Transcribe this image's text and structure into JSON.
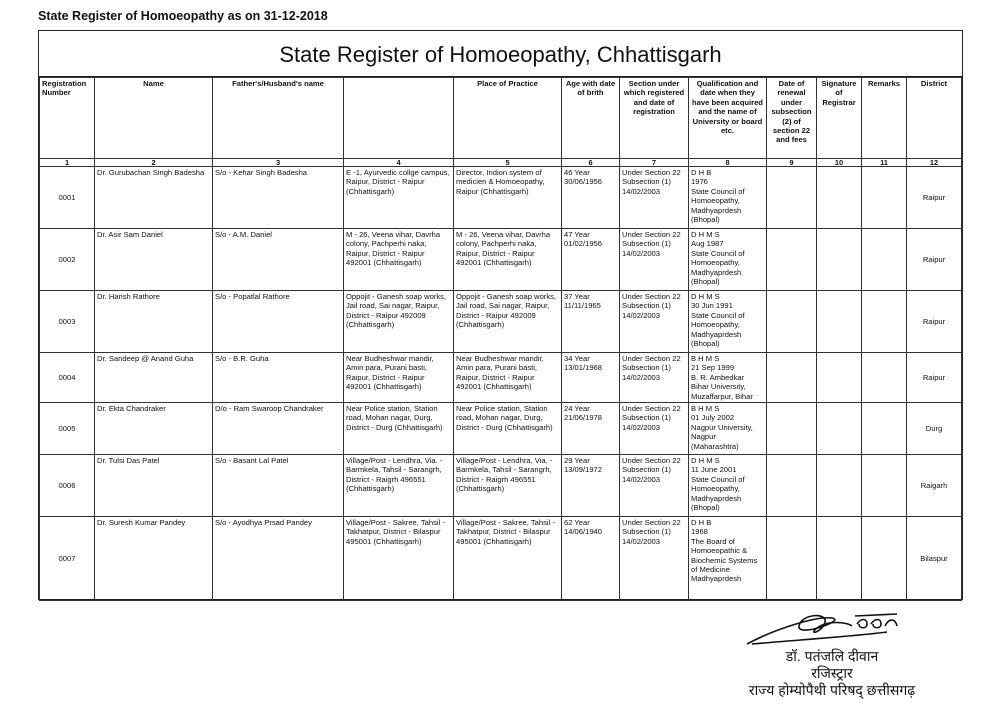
{
  "doc_heading": "State Register of Homoeopathy as on 31-12-2018",
  "title": "State Register of Homoeopathy, Chhattisgarh",
  "columns": [
    {
      "header": "Registration Number",
      "num": "1"
    },
    {
      "header": "Name",
      "num": "2"
    },
    {
      "header": "Father's/Husband's  name",
      "num": "3"
    },
    {
      "header": "",
      "num": "4"
    },
    {
      "header": "Place of Practice",
      "num": "5"
    },
    {
      "header": "Age with date of  brith",
      "num": "6"
    },
    {
      "header": "Section under which registered and date of registration",
      "num": "7"
    },
    {
      "header": "Qualification and date when they have been acquired and the name of University or board etc.",
      "num": "8"
    },
    {
      "header": "Date of renewal under subsection (2) of section 22 and fees",
      "num": "9"
    },
    {
      "header": "Signature of Registrar",
      "num": "10"
    },
    {
      "header": "Remarks",
      "num": "11"
    },
    {
      "header": "District",
      "num": "12"
    }
  ],
  "rows": [
    {
      "reg": "0001",
      "name": "Dr. Gurubachan Singh Badesha",
      "father": "S/o - Kehar Singh Badesha",
      "address": "E -1, Ayurvedic collge campus, Raipur, District - Raipur (Chhattisgarh)",
      "practice": "Director, Indion system of medicien & Homoeopathy, Raipur (Chhattisgarh)",
      "age": "46  Year\n30/06/1956",
      "section": "Under Section 22\nSubsection (1)\n14/02/2003",
      "qual": "D H B\n1976\nState Council of\nHomoeopathy,\nMadhyaprdesh\n(Bhopal)",
      "renewal": "",
      "signature": "",
      "remarks": "",
      "district": "Raipur"
    },
    {
      "reg": "0002",
      "name": "Dr. Asir Sam Daniel",
      "father": "S/o - A.M. Daniel",
      "address": "M - 26, Veena vihar, Davrha colony, Pachperhi naka, Raipur, District - Raipur 492001 (Chhattisgarh)",
      "practice": "M - 26, Veena vihar, Davrha colony, Pachperhi naka, Raipur, District - Raipur 492001 (Chhattisgarh)",
      "age": "47  Year\n01/02/1956",
      "section": "Under Section 22\nSubsection (1)\n14/02/2003",
      "qual": "D H M S\nAug 1987\nState Council of\nHomoeopathy,\nMadhyaprdesh\n(Bhopal)",
      "renewal": "",
      "signature": "",
      "remarks": "",
      "district": "Raipur"
    },
    {
      "reg": "0003",
      "name": "Dr. Harish Rathore",
      "father": "S/o - Popatlal Rathore",
      "address": "Oppojit - Ganesh soap works, Jail road, Sai nagar, Raipur,  District - Raipur 492009 (Chhattisgarh)",
      "practice": "Oppojit - Ganesh soap works, Jail road, Sai nagar, Raipur,  District - Raipur 492009 (Chhattisgarh)",
      "age": "37 Year\n11/11/1965",
      "section": "Under Section 22\nSubsection (1)\n14/02/2003",
      "qual": "D H M S\n30 Jun 1991\nState Council of\nHomoeopathy,\nMadhyaprdesh\n(Bhopal)",
      "renewal": "",
      "signature": "",
      "remarks": "",
      "district": "Raipur"
    },
    {
      "reg": "0004",
      "name": "Dr. Sandeep @ Anand Guha",
      "father": "S/o - B.R. Guha",
      "address": "Near Budheshwar mandir, Amin para, Purani basti, Raipur, District - Raipur 492001 (Chhattisgarh)",
      "practice": "Near Budheshwar mandir, Amin para, Purani basti, Raipur, District - Raipur 492001 (Chhattisgarh)",
      "age": "34  Year\n13/01/1968",
      "section": "Under Section 22\nSubsection (1)\n14/02/2003",
      "qual": "B H M S\n21 Sep 1999\nB. R. Ambedkar\nBihar University,\nMuzaffarpur, Bihar",
      "renewal": "",
      "signature": "",
      "remarks": "",
      "district": "Raipur"
    },
    {
      "reg": "0005",
      "name": "Dr. Ekta Chandraker",
      "father": "D/o - Ram Swaroop Chandraker",
      "address": "Near Police station, Station road, Mohan nagar, Durg, District - Durg (Chhattisgarh)",
      "practice": "Near Police station, Station road, Mohan nagar, Durg, District - Durg (Chhattisgarh)",
      "age": "24 Year\n21/06/1978",
      "section": "Under Section 22\nSubsection (1)\n14/02/2003",
      "qual": "B H M S\n01 July 2002\nNagpur  University,\nNagpur\n(Maharashtra)",
      "renewal": "",
      "signature": "",
      "remarks": "",
      "district": "Durg"
    },
    {
      "reg": "0006",
      "name": "Dr. Tulsi Das Patel",
      "father": "S/o - Basant Lal Patel",
      "address": "Village/Post - Lendhra, Via. - Barmkela, Tahsil -  Sarangrh, District - Raigrh 496551 (Chhattisgarh)",
      "practice": "Village/Post - Lendhra, Via. - Barmkela, Tahsil - Sarangrh, District - Raigrh 496551 (Chhattisgarh)",
      "age": "29  Year\n13/09/1972",
      "section": "Under Section 22\nSubsection (1)\n14/02/2003",
      "qual": "D H M S\n11 June 2001\nState Council of\nHomoeopathy,\nMadhyaprdesh\n(Bhopal)",
      "renewal": "",
      "signature": "",
      "remarks": "",
      "district": "Raigarh"
    },
    {
      "reg": "0007",
      "name": "Dr. Suresh Kumar Pandey",
      "father": "S/o - Ayodhya Prsad Pandey",
      "address": "Village/Post - Sakree, Tahsil - Takhatpur, District - Bilaspur 495001 (Chhattisgarh)",
      "practice": "Village/Post - Sakree, Tahsil -  Takhatpur, District - Bilaspur 495001 (Chhattisgarh)",
      "age": "62 Year\n14/06/1940",
      "section": "Under Section 22\nSubsection (1)\n14/02/2003",
      "qual": "D H B\n1968\nThe Board of\nHomoeopathic &\nBiochemic Systems\nof Medicine\nMadhyaprdesh",
      "renewal": "",
      "signature": "",
      "remarks": "",
      "district": "Bilaspur"
    }
  ],
  "signature_block": {
    "name": "डॉ. पतंजलि दीवान",
    "designation": "रजिस्ट्रार",
    "organization": "राज्य होम्योपैथी परिषद् छत्तीसगढ़"
  }
}
